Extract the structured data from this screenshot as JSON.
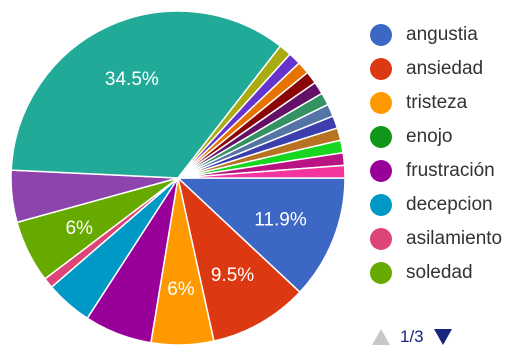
{
  "chart_data": {
    "type": "pie",
    "labels": [
      "angustia",
      "ansiedad",
      "tristeza",
      "enojo",
      "frustración",
      "decepcion",
      "asilamiento",
      "soledad"
    ],
    "slices": [
      {
        "name": "angustia",
        "value": 11.9,
        "color": "#3d67c5",
        "label": "11.9%"
      },
      {
        "name": "ansiedad",
        "value": 9.5,
        "color": "#dc3912",
        "label": "9.5%"
      },
      {
        "name": "tristeza",
        "value": 6.0,
        "color": "#ff9900",
        "label": "6%"
      },
      {
        "name": "enojo",
        "value": 0.0,
        "color": "#109618",
        "label": ""
      },
      {
        "name": "frustración",
        "value": 6.5,
        "color": "#990099",
        "label": ""
      },
      {
        "name": "decepcion",
        "value": 4.5,
        "color": "#0099c6",
        "label": ""
      },
      {
        "name": "asilamiento",
        "value": 1.0,
        "color": "#dd4477",
        "label": ""
      },
      {
        "name": "soledad",
        "value": 6.0,
        "color": "#66aa00",
        "label": "6%"
      },
      {
        "name": "",
        "value": 5.0,
        "color": "#8e44ad",
        "label": ""
      },
      {
        "name": "",
        "value": 34.5,
        "color": "#22aa99",
        "label": "34.5%"
      },
      {
        "name": "",
        "value": 1.2,
        "color": "#aaaa11",
        "label": ""
      },
      {
        "name": "",
        "value": 1.2,
        "color": "#6633cc",
        "label": ""
      },
      {
        "name": "",
        "value": 1.2,
        "color": "#e67300",
        "label": ""
      },
      {
        "name": "",
        "value": 1.2,
        "color": "#8b0707",
        "label": ""
      },
      {
        "name": "",
        "value": 1.2,
        "color": "#651067",
        "label": ""
      },
      {
        "name": "",
        "value": 1.2,
        "color": "#329262",
        "label": ""
      },
      {
        "name": "",
        "value": 1.2,
        "color": "#5574a6",
        "label": ""
      },
      {
        "name": "",
        "value": 1.2,
        "color": "#3b3eac",
        "label": ""
      },
      {
        "name": "",
        "value": 1.2,
        "color": "#b77322",
        "label": ""
      },
      {
        "name": "",
        "value": 1.2,
        "color": "#16d620",
        "label": ""
      },
      {
        "name": "",
        "value": 1.2,
        "color": "#b91383",
        "label": ""
      },
      {
        "name": "",
        "value": 1.2,
        "color": "#f4359e",
        "label": ""
      }
    ]
  },
  "legend": [
    {
      "label": "angustia",
      "color": "#3d67c5"
    },
    {
      "label": "ansiedad",
      "color": "#dc3912"
    },
    {
      "label": "tristeza",
      "color": "#ff9900"
    },
    {
      "label": "enojo",
      "color": "#109618"
    },
    {
      "label": "frustración",
      "color": "#990099"
    },
    {
      "label": "decepcion",
      "color": "#0099c6"
    },
    {
      "label": "asilamiento",
      "color": "#dd4477"
    },
    {
      "label": "soledad",
      "color": "#66aa00"
    }
  ],
  "pager": {
    "text": "1/3"
  }
}
